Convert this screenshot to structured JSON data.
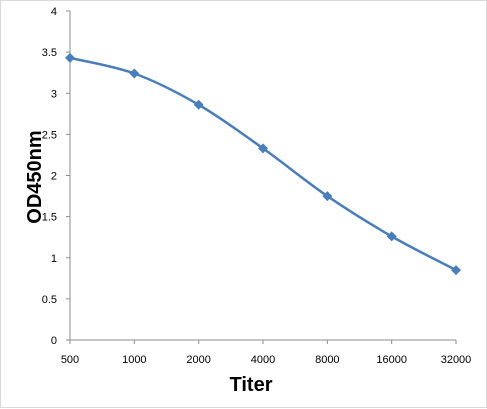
{
  "chart_data": {
    "type": "line",
    "title": "",
    "xlabel": "Titer",
    "ylabel": "OD450nm",
    "categories": [
      "500",
      "1000",
      "2000",
      "4000",
      "8000",
      "16000",
      "32000"
    ],
    "series": [
      {
        "values": [
          3.43,
          3.24,
          2.86,
          2.33,
          1.75,
          1.26,
          0.85
        ],
        "color": "#4a7ebb",
        "marker": "diamond"
      }
    ],
    "ylim": [
      0,
      4
    ],
    "yticks": [
      0,
      0.5,
      1,
      1.5,
      2,
      2.5,
      3,
      3.5,
      4
    ],
    "ytick_labels": [
      "0",
      "0.5",
      "1",
      "1.5",
      "2",
      "2.5",
      "3",
      "3.5",
      "4"
    ],
    "grid": false,
    "legend": "none",
    "smooth": true
  }
}
